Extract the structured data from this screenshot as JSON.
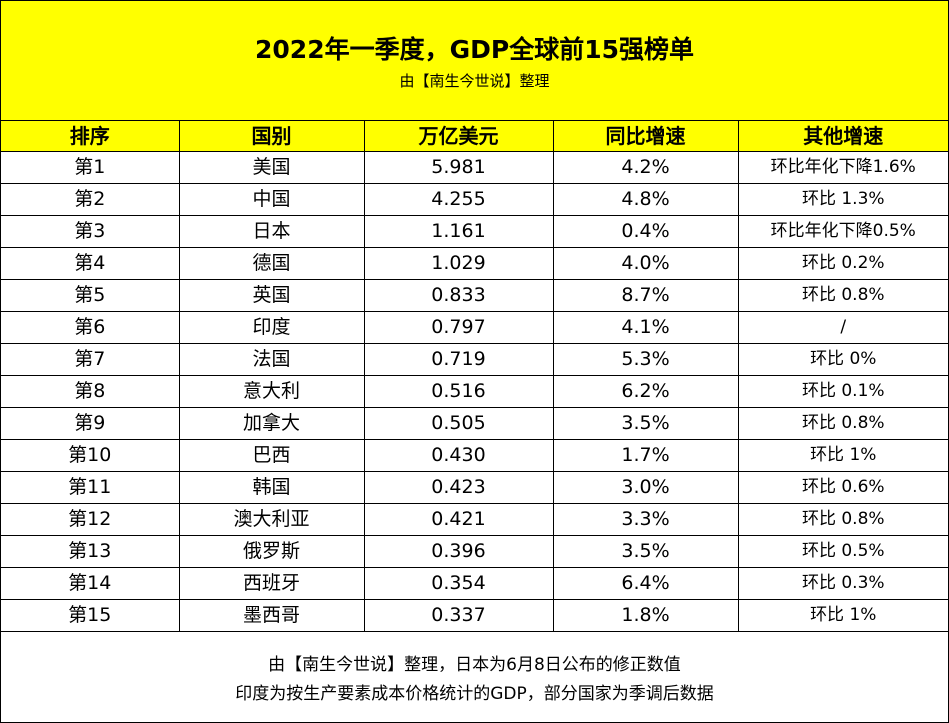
{
  "header": {
    "title": "2022年一季度，GDP全球前15强榜单",
    "subtitle": "由【南生今世说】整理"
  },
  "table": {
    "columns": [
      "排序",
      "国别",
      "万亿美元",
      "同比增速",
      "其他增速"
    ],
    "rows": [
      {
        "rank": "第1",
        "country": "美国",
        "gdp": "5.981",
        "yoy": "4.2%",
        "other": "环比年化下降1.6%"
      },
      {
        "rank": "第2",
        "country": "中国",
        "gdp": "4.255",
        "yoy": "4.8%",
        "other": "环比 1.3%"
      },
      {
        "rank": "第3",
        "country": "日本",
        "gdp": "1.161",
        "yoy": "0.4%",
        "other": "环比年化下降0.5%"
      },
      {
        "rank": "第4",
        "country": "德国",
        "gdp": "1.029",
        "yoy": "4.0%",
        "other": "环比 0.2%"
      },
      {
        "rank": "第5",
        "country": "英国",
        "gdp": "0.833",
        "yoy": "8.7%",
        "other": "环比 0.8%"
      },
      {
        "rank": "第6",
        "country": "印度",
        "gdp": "0.797",
        "yoy": "4.1%",
        "other": "/"
      },
      {
        "rank": "第7",
        "country": "法国",
        "gdp": "0.719",
        "yoy": "5.3%",
        "other": "环比 0%"
      },
      {
        "rank": "第8",
        "country": "意大利",
        "gdp": "0.516",
        "yoy": "6.2%",
        "other": "环比 0.1%"
      },
      {
        "rank": "第9",
        "country": "加拿大",
        "gdp": "0.505",
        "yoy": "3.5%",
        "other": "环比 0.8%"
      },
      {
        "rank": "第10",
        "country": "巴西",
        "gdp": "0.430",
        "yoy": "1.7%",
        "other": "环比 1%"
      },
      {
        "rank": "第11",
        "country": "韩国",
        "gdp": "0.423",
        "yoy": "3.0%",
        "other": "环比 0.6%"
      },
      {
        "rank": "第12",
        "country": "澳大利亚",
        "gdp": "0.421",
        "yoy": "3.3%",
        "other": "环比 0.8%"
      },
      {
        "rank": "第13",
        "country": "俄罗斯",
        "gdp": "0.396",
        "yoy": "3.5%",
        "other": "环比 0.5%"
      },
      {
        "rank": "第14",
        "country": "西班牙",
        "gdp": "0.354",
        "yoy": "6.4%",
        "other": "环比 0.3%"
      },
      {
        "rank": "第15",
        "country": "墨西哥",
        "gdp": "0.337",
        "yoy": "1.8%",
        "other": "环比 1%"
      }
    ]
  },
  "footer": {
    "line1": "由【南生今世说】整理，日本为6月8日公布的修正数值",
    "line2": "印度为按生产要素成本价格统计的GDP，部分国家为季调后数据"
  },
  "colors": {
    "banner_bg": "#ffff00",
    "header_bg": "#ffff00",
    "border": "#000000"
  }
}
